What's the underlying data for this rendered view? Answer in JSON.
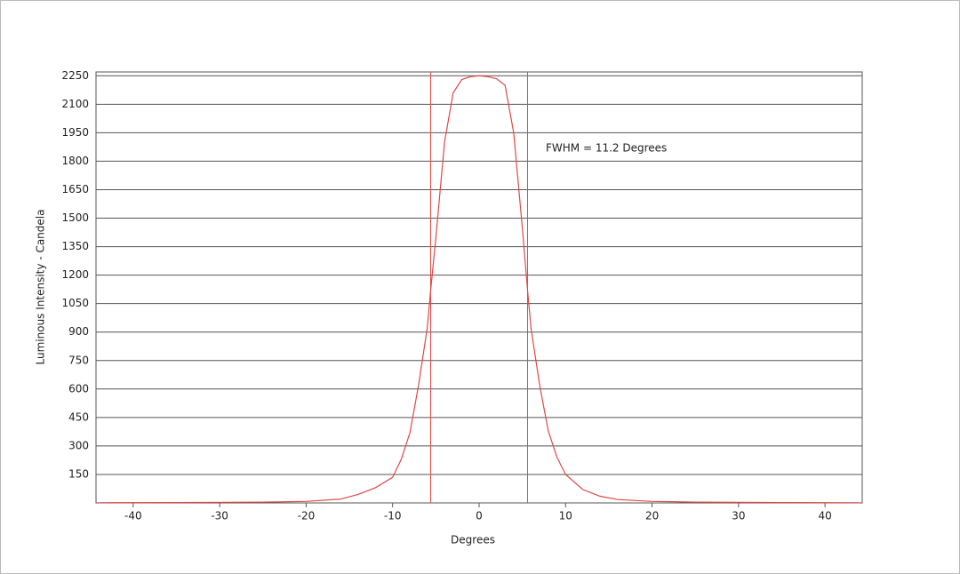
{
  "chart_data": {
    "type": "line",
    "x_label": "Degrees",
    "y_label": "Luminous Intensity - Candela",
    "annotation": "FWHM = 11.2 Degrees",
    "x": [
      -44,
      -35,
      -25,
      -20,
      -16,
      -14,
      -12,
      -10,
      -9,
      -8,
      -7,
      -6,
      -5.6,
      -5,
      -4,
      -3,
      -2,
      -1,
      0,
      1,
      2,
      3,
      4,
      5,
      5.6,
      6,
      7,
      8,
      9,
      10,
      12,
      14,
      16,
      20,
      25,
      35,
      44
    ],
    "series": [
      {
        "color": "#e04848",
        "values": [
          1,
          2,
          4,
          8,
          20,
          45,
          80,
          135,
          230,
          370,
          620,
          920,
          1120,
          1400,
          1900,
          2160,
          2230,
          2245,
          2250,
          2245,
          2235,
          2200,
          1950,
          1450,
          1120,
          920,
          620,
          380,
          240,
          150,
          70,
          35,
          18,
          8,
          4,
          2,
          1
        ]
      }
    ],
    "vlines": [
      -5.6,
      5.6
    ],
    "vline_color": "#e04848",
    "xlim": [
      -44.3,
      44.3
    ],
    "ylim": [
      0,
      2270
    ],
    "xticks": [
      -40,
      -30,
      -20,
      -10,
      0,
      10,
      20,
      30,
      40
    ],
    "yticks": [
      150,
      300,
      450,
      600,
      750,
      900,
      1050,
      1200,
      1350,
      1500,
      1650,
      1800,
      1950,
      2100,
      2250
    ],
    "grid": true
  }
}
